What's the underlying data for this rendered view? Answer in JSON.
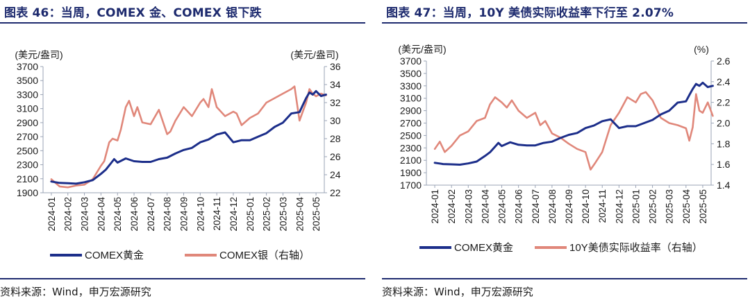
{
  "charts": [
    {
      "title": "图表 46：当周，COMEX 金、COMEX 银下跌",
      "source": "资料来源：Wind，申万宏源研究",
      "chart_data": {
        "type": "line",
        "title": "图表 46：当周，COMEX 金、COMEX 银下跌",
        "x_tick_labels": [
          "2024-01",
          "2024-02",
          "2024-03",
          "2024-04",
          "2024-05",
          "2024-06",
          "2024-07",
          "2024-08",
          "2024-09",
          "2024-10",
          "2024-11",
          "2024-12",
          "2025-01",
          "2025-02",
          "2025-03",
          "2025-04",
          "2025-05"
        ],
        "left_axis": {
          "unit": "(美元/盎司)",
          "min": 1900,
          "max": 3700,
          "ticks": [
            1900,
            2100,
            2300,
            2500,
            2700,
            2900,
            3100,
            3300,
            3500,
            3700
          ]
        },
        "right_axis": {
          "unit": "(美元/盎司)",
          "min": 22,
          "max": 36,
          "ticks": [
            22,
            24,
            26,
            28,
            30,
            32,
            34,
            36
          ]
        },
        "legend_position": "bottom",
        "series": [
          {
            "name": "COMEX黄金",
            "axis": "left",
            "color": "#1c2e8a",
            "x": [
              0,
              0.5,
              1,
              1.5,
              2,
              2.5,
              3,
              3.3,
              3.6,
              3.8,
              4,
              4.5,
              5,
              5.5,
              6,
              6.5,
              7,
              7.5,
              8,
              8.5,
              9,
              9.5,
              10,
              10.5,
              11,
              11.5,
              12,
              12.5,
              13,
              13.5,
              14,
              14.5,
              15,
              15.2,
              15.4,
              15.6,
              15.8,
              16,
              16.3,
              16.6
            ],
            "values": [
              2060,
              2040,
              2035,
              2030,
              2050,
              2080,
              2170,
              2230,
              2320,
              2380,
              2330,
              2390,
              2350,
              2340,
              2340,
              2380,
              2400,
              2460,
              2510,
              2540,
              2620,
              2660,
              2730,
              2760,
              2620,
              2650,
              2650,
              2700,
              2750,
              2840,
              2900,
              3030,
              3050,
              3150,
              3250,
              3330,
              3300,
              3350,
              3280,
              3300
            ]
          },
          {
            "name": "COMEX银（右轴）",
            "axis": "right",
            "color": "#e0877a",
            "x": [
              0,
              0.5,
              1,
              1.5,
              2,
              2.5,
              3,
              3.2,
              3.5,
              3.7,
              4,
              4.2,
              4.5,
              4.7,
              5,
              5.2,
              5.5,
              6,
              6.5,
              7,
              7.2,
              7.5,
              8,
              8.5,
              9,
              9.2,
              9.5,
              9.7,
              10,
              10.5,
              11,
              11.2,
              11.5,
              12,
              12.5,
              13,
              13.5,
              14,
              14.5,
              14.7,
              15,
              15.2,
              15.4,
              15.6,
              15.8,
              16,
              16.3,
              16.6
            ],
            "values": [
              23.5,
              22.7,
              22.6,
              22.8,
              22.9,
              23.5,
              25,
              25.5,
              27.6,
              28,
              27.8,
              29,
              31.5,
              32.2,
              30.5,
              31.5,
              29.8,
              29.6,
              31.2,
              28.5,
              28.8,
              30,
              31.5,
              30.5,
              32,
              32.4,
              31.5,
              33.5,
              31.5,
              30.5,
              31,
              30.8,
              29.5,
              30.3,
              30.8,
              32,
              32.5,
              33,
              33.5,
              33.8,
              30,
              31,
              32,
              33.5,
              33,
              32.7,
              33,
              32.8
            ]
          }
        ]
      }
    },
    {
      "title": "图表 47：当周，10Y 美债实际收益率下行至 2.07%",
      "source": "资料来源：Wind，申万宏源研究",
      "chart_data": {
        "type": "line",
        "title": "图表 47：当周，10Y 美债实际收益率下行至 2.07%",
        "x_tick_labels": [
          "2024-01",
          "2024-02",
          "2024-03",
          "2024-04",
          "2024-05",
          "2024-06",
          "2024-07",
          "2024-08",
          "2024-09",
          "2024-10",
          "2024-11",
          "2024-12",
          "2025-01",
          "2025-02",
          "2025-03",
          "2025-04",
          "2025-05"
        ],
        "left_axis": {
          "unit": "(美元/盎司)",
          "min": 1700,
          "max": 3700,
          "ticks": [
            1700,
            1900,
            2100,
            2300,
            2500,
            2700,
            2900,
            3100,
            3300,
            3500,
            3700
          ]
        },
        "right_axis": {
          "unit": "(%)",
          "min": 1.4,
          "max": 2.6,
          "ticks": [
            1.4,
            1.6,
            1.8,
            2.0,
            2.2,
            2.4,
            2.6
          ]
        },
        "legend_position": "bottom",
        "series": [
          {
            "name": "COMEX黄金",
            "axis": "left",
            "color": "#1c2e8a",
            "x": [
              0,
              0.5,
              1,
              1.5,
              2,
              2.5,
              3,
              3.3,
              3.6,
              3.8,
              4,
              4.5,
              5,
              5.5,
              6,
              6.5,
              7,
              7.5,
              8,
              8.5,
              9,
              9.5,
              10,
              10.5,
              11,
              11.5,
              12,
              12.5,
              13,
              13.5,
              14,
              14.5,
              15,
              15.2,
              15.4,
              15.6,
              15.8,
              16,
              16.3,
              16.6
            ],
            "values": [
              2060,
              2040,
              2035,
              2030,
              2050,
              2080,
              2170,
              2230,
              2320,
              2380,
              2330,
              2390,
              2350,
              2340,
              2340,
              2380,
              2400,
              2460,
              2510,
              2540,
              2620,
              2660,
              2730,
              2760,
              2620,
              2650,
              2650,
              2700,
              2750,
              2840,
              2900,
              3030,
              3050,
              3150,
              3250,
              3330,
              3300,
              3350,
              3280,
              3300
            ]
          },
          {
            "name": "10Y美债实际收益率（右轴）",
            "axis": "right",
            "color": "#e0877a",
            "x": [
              0,
              0.3,
              0.6,
              1,
              1.5,
              2,
              2.5,
              3,
              3.3,
              3.6,
              4,
              4.3,
              4.6,
              5,
              5.5,
              6,
              6.3,
              6.6,
              7,
              7.5,
              8,
              8.5,
              9,
              9.3,
              9.6,
              10,
              10.5,
              11,
              11.5,
              12,
              12.3,
              12.6,
              13,
              13.5,
              14,
              14.5,
              15,
              15.2,
              15.4,
              15.6,
              15.8,
              16,
              16.3,
              16.6
            ],
            "values": [
              1.75,
              1.82,
              1.72,
              1.78,
              1.88,
              1.92,
              2.02,
              2.05,
              2.18,
              2.25,
              2.2,
              2.15,
              2.22,
              2.12,
              2.05,
              2.1,
              1.98,
              2.02,
              1.9,
              1.86,
              1.8,
              1.75,
              1.72,
              1.55,
              1.62,
              1.72,
              1.98,
              2.1,
              2.25,
              2.2,
              2.28,
              2.3,
              2.22,
              2.05,
              2.0,
              1.98,
              1.95,
              1.83,
              1.96,
              2.28,
              2.12,
              2.1,
              2.2,
              2.07
            ]
          }
        ]
      }
    }
  ]
}
